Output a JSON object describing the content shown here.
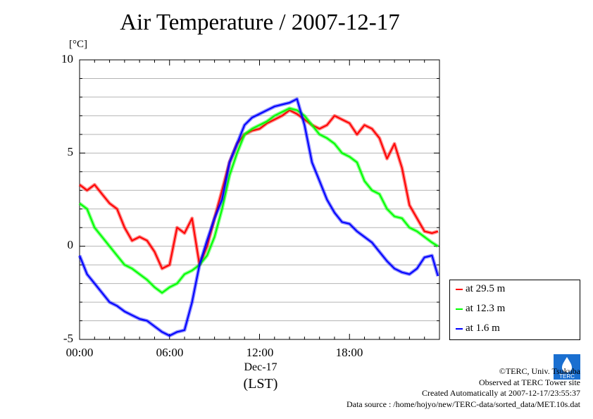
{
  "chart_data": {
    "type": "line",
    "title": "Air Temperature / 2007-12-17",
    "ylabel": "[°C]",
    "xlabel": "(LST)",
    "date_label": "Dec-17",
    "ylim": [
      -5,
      10
    ],
    "xlim": [
      0,
      24
    ],
    "y_ticks": [
      "10",
      "5",
      "0",
      "-5"
    ],
    "x_ticks": [
      "00:00",
      "06:00",
      "12:00",
      "18:00"
    ],
    "grid": true,
    "legend_position": "bottom-right",
    "series": [
      {
        "name": "at 29.5 m",
        "color": "#ff0000",
        "x": [
          0,
          0.5,
          1,
          1.5,
          2,
          2.5,
          3,
          3.5,
          4,
          4.5,
          5,
          5.5,
          6,
          6.5,
          7,
          7.5,
          8,
          8.5,
          9,
          9.5,
          10,
          10.5,
          11,
          11.5,
          12,
          12.5,
          13,
          13.5,
          14,
          14.5,
          15,
          15.5,
          16,
          16.5,
          17,
          17.5,
          18,
          18.5,
          19,
          19.5,
          20,
          20.5,
          21,
          21.5,
          22,
          22.5,
          23,
          23.5,
          23.9
        ],
        "y": [
          3.3,
          3.0,
          3.3,
          2.8,
          2.3,
          2.0,
          1.0,
          0.3,
          0.5,
          0.3,
          -0.3,
          -1.2,
          -1.0,
          1.0,
          0.7,
          1.5,
          -1.0,
          0.0,
          1.5,
          3.0,
          4.5,
          5.5,
          6.0,
          6.2,
          6.3,
          6.6,
          6.8,
          7.0,
          7.3,
          7.1,
          6.8,
          6.5,
          6.3,
          6.5,
          7.0,
          6.8,
          6.6,
          6.0,
          6.5,
          6.3,
          5.8,
          4.7,
          5.5,
          4.2,
          2.2,
          1.5,
          0.8,
          0.7,
          0.8
        ]
      },
      {
        "name": "at 12.3 m",
        "color": "#00ff00",
        "x": [
          0,
          0.5,
          1,
          1.5,
          2,
          2.5,
          3,
          3.5,
          4,
          4.5,
          5,
          5.5,
          6,
          6.5,
          7,
          7.5,
          8,
          8.5,
          9,
          9.5,
          10,
          10.5,
          11,
          11.5,
          12,
          12.5,
          13,
          13.5,
          14,
          14.5,
          15,
          15.5,
          16,
          16.5,
          17,
          17.5,
          18,
          18.5,
          19,
          19.5,
          20,
          20.5,
          21,
          21.5,
          22,
          22.5,
          23,
          23.5,
          23.9
        ],
        "y": [
          2.3,
          2.0,
          1.0,
          0.5,
          0.0,
          -0.5,
          -1.0,
          -1.2,
          -1.5,
          -1.8,
          -2.2,
          -2.5,
          -2.2,
          -2.0,
          -1.5,
          -1.3,
          -1.0,
          -0.5,
          0.5,
          2.0,
          3.8,
          5.0,
          6.0,
          6.3,
          6.5,
          6.7,
          7.0,
          7.2,
          7.4,
          7.3,
          7.0,
          6.5,
          6.0,
          5.8,
          5.5,
          5.0,
          4.8,
          4.5,
          3.5,
          3.0,
          2.8,
          2.0,
          1.6,
          1.5,
          1.0,
          0.8,
          0.5,
          0.2,
          0.0
        ]
      },
      {
        "name": "at 1.6 m",
        "color": "#0000ff",
        "x": [
          0,
          0.5,
          1,
          1.5,
          2,
          2.5,
          3,
          3.5,
          4,
          4.5,
          5,
          5.5,
          6,
          6.5,
          7,
          7.5,
          8,
          8.5,
          9,
          9.5,
          10,
          10.5,
          11,
          11.5,
          12,
          12.5,
          13,
          13.5,
          14,
          14.5,
          15,
          15.5,
          16,
          16.5,
          17,
          17.5,
          18,
          18.5,
          19,
          19.5,
          20,
          20.5,
          21,
          21.5,
          22,
          22.5,
          23,
          23.5,
          23.9
        ],
        "y": [
          -0.5,
          -1.5,
          -2.0,
          -2.5,
          -3.0,
          -3.2,
          -3.5,
          -3.7,
          -3.9,
          -4.0,
          -4.3,
          -4.6,
          -4.8,
          -4.6,
          -4.5,
          -3.0,
          -1.0,
          0.3,
          1.5,
          2.5,
          4.5,
          5.5,
          6.5,
          6.9,
          7.1,
          7.3,
          7.5,
          7.6,
          7.7,
          7.9,
          6.5,
          4.5,
          3.5,
          2.5,
          1.8,
          1.3,
          1.2,
          0.8,
          0.5,
          0.2,
          -0.3,
          -0.8,
          -1.2,
          -1.4,
          -1.5,
          -1.2,
          -0.6,
          -0.5,
          -1.6
        ]
      }
    ]
  },
  "credits": {
    "copyright": "©TERC, Univ. Tsukuba",
    "observed": "Observed at TERC Tower site",
    "created": "Created Automatically at 2007-12-17/23:55:37",
    "source": "Data source : /home/hojyo/new/TERC-data/sorted_data/MET.10s.dat"
  },
  "logo_text": "TERC"
}
